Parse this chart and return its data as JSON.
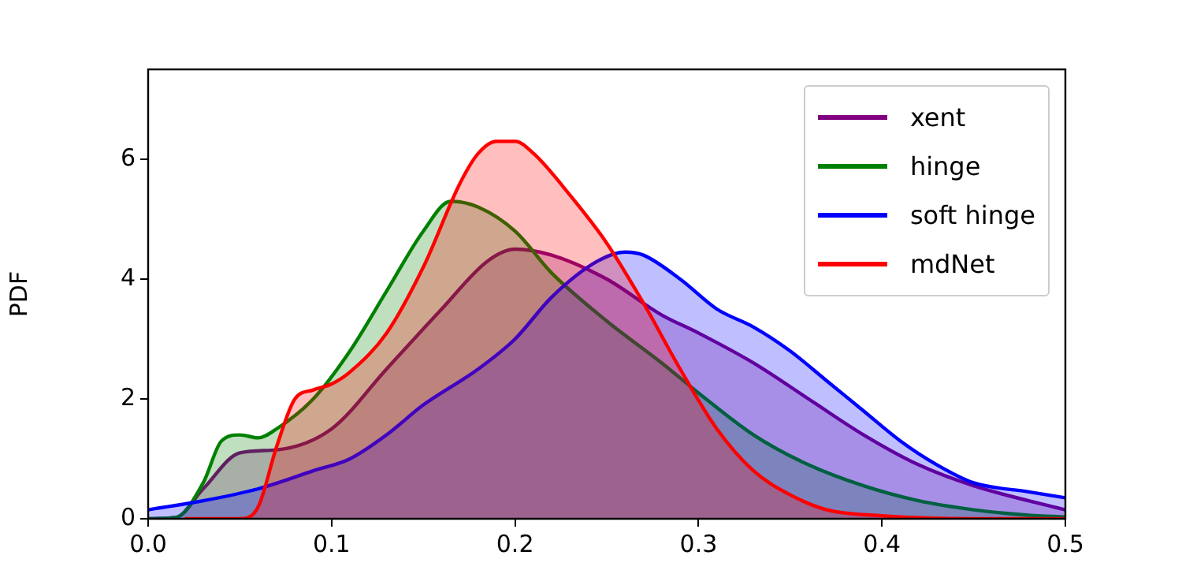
{
  "chart_data": {
    "type": "area",
    "ylabel": "PDF",
    "xlim": [
      0,
      0.5
    ],
    "xticks": [
      {
        "value": 0,
        "label": "0.0"
      },
      0.1,
      0.2,
      0.3,
      0.4,
      0.5
    ],
    "ylim": [
      0,
      7.5
    ],
    "yticks": [
      0,
      2,
      4,
      6
    ],
    "grid": false,
    "legend": "top right",
    "series": [
      {
        "name": "xent",
        "color": "#800080",
        "x": [
          0,
          0.015,
          0.03,
          0.05,
          0.07,
          0.1,
          0.13,
          0.16,
          0.185,
          0.2,
          0.22,
          0.25,
          0.28,
          0.3,
          0.33,
          0.36,
          0.39,
          0.42,
          0.45,
          0.48,
          0.5
        ],
        "values": [
          0,
          0.02,
          0.5,
          1.1,
          1.15,
          1.5,
          2.5,
          3.5,
          4.3,
          4.5,
          4.4,
          4.0,
          3.4,
          3.1,
          2.6,
          2.0,
          1.4,
          0.9,
          0.55,
          0.3,
          0.15
        ]
      },
      {
        "name": "hinge",
        "color": "#008000",
        "x": [
          0,
          0.015,
          0.03,
          0.04,
          0.05,
          0.06,
          0.07,
          0.09,
          0.11,
          0.13,
          0.15,
          0.165,
          0.18,
          0.2,
          0.22,
          0.25,
          0.28,
          0.3,
          0.33,
          0.36,
          0.39,
          0.42,
          0.45,
          0.48,
          0.5
        ],
        "values": [
          0,
          0.02,
          0.6,
          1.3,
          1.4,
          1.35,
          1.5,
          2.0,
          2.8,
          3.8,
          4.8,
          5.3,
          5.2,
          4.8,
          4.1,
          3.3,
          2.6,
          2.1,
          1.4,
          0.9,
          0.55,
          0.3,
          0.15,
          0.06,
          0.03
        ]
      },
      {
        "name": "soft hinge",
        "color": "#0000ff",
        "x": [
          0,
          0.03,
          0.06,
          0.09,
          0.11,
          0.13,
          0.15,
          0.18,
          0.2,
          0.22,
          0.245,
          0.26,
          0.27,
          0.29,
          0.31,
          0.33,
          0.35,
          0.37,
          0.39,
          0.41,
          0.43,
          0.45,
          0.48,
          0.5
        ],
        "values": [
          0.15,
          0.3,
          0.5,
          0.8,
          1.0,
          1.4,
          1.9,
          2.5,
          3.0,
          3.7,
          4.3,
          4.45,
          4.4,
          4.0,
          3.5,
          3.2,
          2.8,
          2.3,
          1.8,
          1.3,
          0.9,
          0.6,
          0.45,
          0.35
        ]
      },
      {
        "name": "mdNet",
        "color": "#ff0000",
        "x": [
          0.02,
          0.05,
          0.06,
          0.07,
          0.08,
          0.09,
          0.1,
          0.11,
          0.13,
          0.15,
          0.17,
          0.18,
          0.19,
          0.2,
          0.21,
          0.23,
          0.25,
          0.27,
          0.29,
          0.31,
          0.33,
          0.35,
          0.37,
          0.4,
          0.45,
          0.5
        ],
        "values": [
          0,
          0,
          0.2,
          1.2,
          2.0,
          2.15,
          2.25,
          2.45,
          3.1,
          4.2,
          5.6,
          6.1,
          6.3,
          6.3,
          6.1,
          5.4,
          4.6,
          3.6,
          2.5,
          1.5,
          0.8,
          0.4,
          0.15,
          0.05,
          0,
          0
        ]
      }
    ]
  }
}
